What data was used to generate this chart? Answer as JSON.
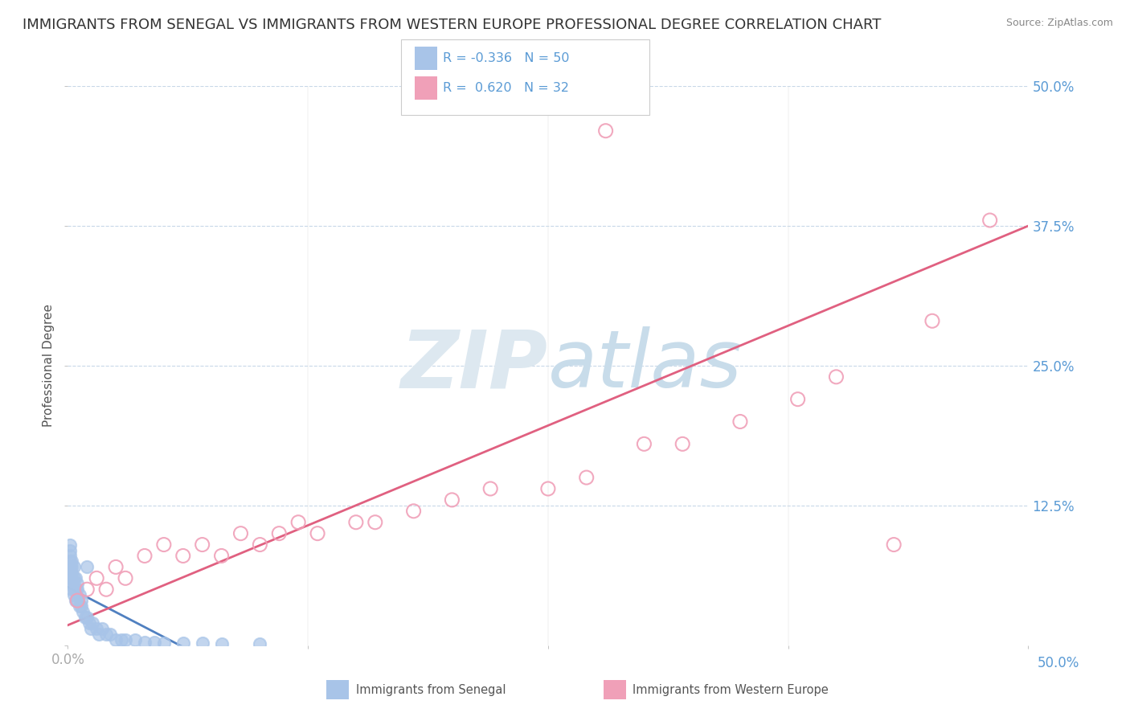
{
  "title": "IMMIGRANTS FROM SENEGAL VS IMMIGRANTS FROM WESTERN EUROPE PROFESSIONAL DEGREE CORRELATION CHART",
  "source": "Source: ZipAtlas.com",
  "ylabel": "Professional Degree",
  "xlim": [
    0.0,
    0.5
  ],
  "ylim": [
    0.0,
    0.5
  ],
  "legend1_R": "-0.336",
  "legend1_N": "50",
  "legend2_R": "0.620",
  "legend2_N": "32",
  "color_senegal": "#a8c4e8",
  "color_western": "#f0a0b8",
  "line_color_senegal": "#5080c0",
  "line_color_western": "#e06080",
  "watermark_color": "#dce8f5",
  "background_color": "#ffffff",
  "tick_color": "#5b9bd5",
  "title_fontsize": 13,
  "senegal_x": [
    0.001,
    0.001,
    0.001,
    0.001,
    0.001,
    0.001,
    0.001,
    0.002,
    0.002,
    0.002,
    0.002,
    0.002,
    0.002,
    0.003,
    0.003,
    0.003,
    0.003,
    0.004,
    0.004,
    0.004,
    0.005,
    0.005,
    0.005,
    0.006,
    0.006,
    0.007,
    0.007,
    0.008,
    0.009,
    0.01,
    0.01,
    0.011,
    0.012,
    0.013,
    0.015,
    0.016,
    0.018,
    0.02,
    0.022,
    0.025,
    0.028,
    0.03,
    0.035,
    0.04,
    0.045,
    0.05,
    0.06,
    0.07,
    0.08,
    0.1
  ],
  "senegal_y": [
    0.06,
    0.065,
    0.07,
    0.075,
    0.08,
    0.085,
    0.09,
    0.05,
    0.055,
    0.06,
    0.065,
    0.07,
    0.075,
    0.045,
    0.05,
    0.06,
    0.07,
    0.04,
    0.05,
    0.06,
    0.04,
    0.05,
    0.055,
    0.035,
    0.045,
    0.035,
    0.04,
    0.03,
    0.025,
    0.025,
    0.07,
    0.02,
    0.015,
    0.02,
    0.015,
    0.01,
    0.015,
    0.01,
    0.01,
    0.005,
    0.005,
    0.005,
    0.005,
    0.003,
    0.003,
    0.002,
    0.002,
    0.002,
    0.001,
    0.001
  ],
  "western_x": [
    0.005,
    0.01,
    0.015,
    0.02,
    0.025,
    0.03,
    0.04,
    0.05,
    0.06,
    0.07,
    0.08,
    0.09,
    0.1,
    0.11,
    0.12,
    0.13,
    0.15,
    0.16,
    0.18,
    0.2,
    0.22,
    0.25,
    0.27,
    0.3,
    0.32,
    0.35,
    0.38,
    0.4,
    0.43,
    0.45,
    0.28,
    0.48
  ],
  "western_y": [
    0.04,
    0.05,
    0.06,
    0.05,
    0.07,
    0.06,
    0.08,
    0.09,
    0.08,
    0.09,
    0.08,
    0.1,
    0.09,
    0.1,
    0.11,
    0.1,
    0.11,
    0.11,
    0.12,
    0.13,
    0.14,
    0.14,
    0.15,
    0.18,
    0.18,
    0.2,
    0.22,
    0.24,
    0.09,
    0.29,
    0.46,
    0.38
  ]
}
